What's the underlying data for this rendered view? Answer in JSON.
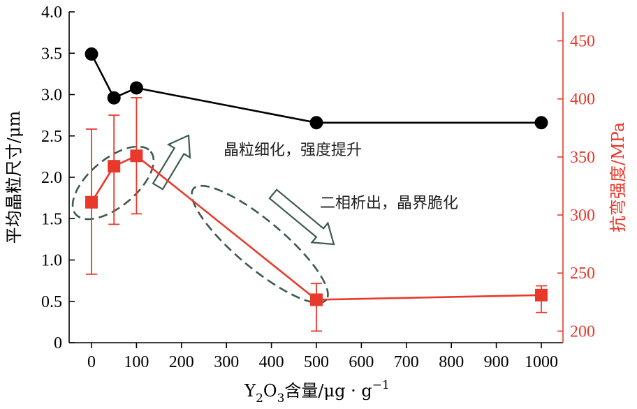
{
  "chart_data": {
    "type": "line",
    "x": [
      0,
      50,
      100,
      500,
      1000
    ],
    "xticks": [
      "0",
      "100",
      "200",
      "300",
      "400",
      "500",
      "600",
      "700",
      "800",
      "900",
      "1000"
    ],
    "xlim": [
      -50,
      1050
    ],
    "xlabel": {
      "base": "Y",
      "sub1": "2",
      "mid": "O",
      "sub2": "3",
      "rest": "含量/μg · g",
      "sup": "−1"
    },
    "left_axis": {
      "label": "平均晶粒尺寸/μm",
      "ylim": [
        0,
        4.0
      ],
      "ticks": [
        "0",
        "0.5",
        "1.0",
        "1.5",
        "2.0",
        "2.5",
        "3.0",
        "3.5",
        "4.0"
      ],
      "color": "#000000"
    },
    "right_axis": {
      "label": "抗弯强度/MPa",
      "ylim": [
        190,
        475
      ],
      "ticks": [
        "200",
        "250",
        "300",
        "350",
        "400",
        "450"
      ],
      "color": "#e8392b"
    },
    "series": [
      {
        "axis": "left",
        "marker": "circle",
        "color": "#000000",
        "values": [
          3.49,
          2.96,
          3.08,
          2.66,
          2.66
        ]
      },
      {
        "axis": "right",
        "marker": "square",
        "color": "#e8392b",
        "values": [
          311,
          342,
          351,
          227,
          231
        ],
        "err_low": [
          249,
          292,
          301,
          200,
          216
        ],
        "err_high": [
          374,
          386,
          401,
          241,
          239
        ]
      }
    ],
    "annotations": [
      {
        "text": "晶粒细化，强度提升"
      },
      {
        "text": "二相析出，晶界脆化"
      }
    ],
    "highlight_color": "#3d5a4e"
  }
}
